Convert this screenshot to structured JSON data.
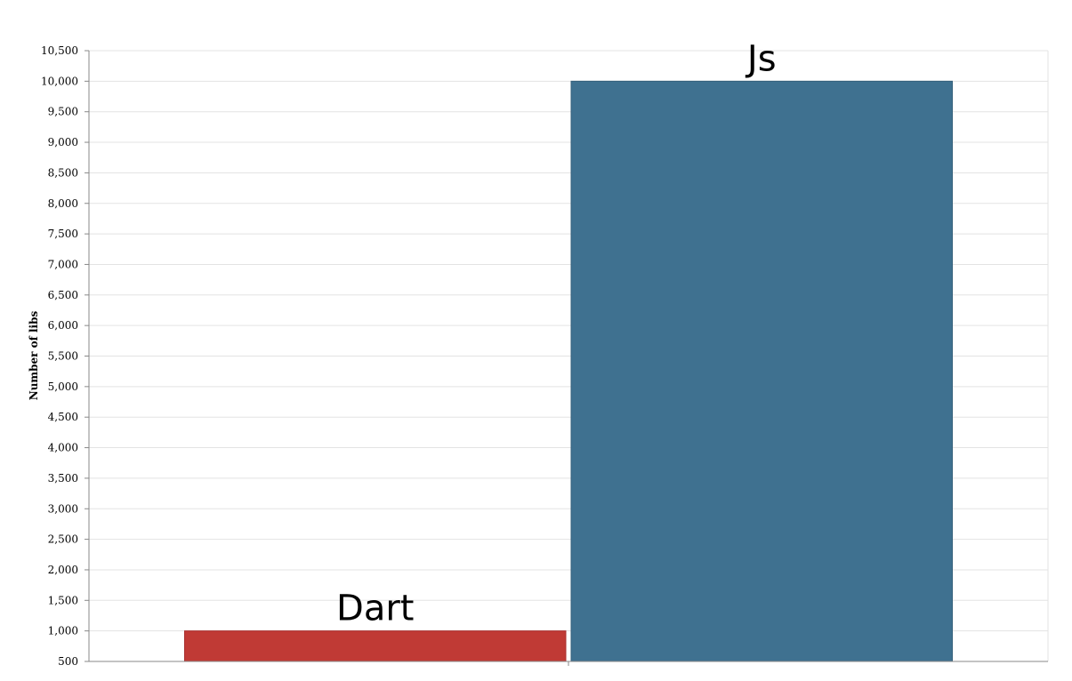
{
  "chart_data": {
    "type": "bar",
    "categories": [
      "Dart",
      "Js"
    ],
    "values": [
      1000,
      10000
    ],
    "colors": [
      "#c03a35",
      "#3f7190"
    ],
    "ylabel": "Number of libs",
    "xlabel": "",
    "ylim": [
      500,
      10500
    ],
    "yticks": [
      "500",
      "1,000",
      "1,500",
      "2,000",
      "2,500",
      "3,000",
      "3,500",
      "4,000",
      "4,500",
      "5,000",
      "5,500",
      "6,000",
      "6,500",
      "7,000",
      "7,500",
      "8,000",
      "8,500",
      "9,000",
      "9,500",
      "10,000",
      "10,500"
    ],
    "grid": true,
    "legend": "none"
  }
}
